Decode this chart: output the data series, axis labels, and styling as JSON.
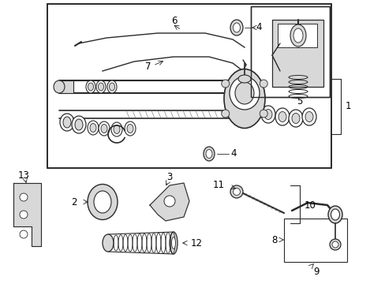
{
  "bg_color": "#ffffff",
  "lc": "#2a2a2a",
  "gray_fill": "#d8d8d8",
  "light_fill": "#eeeeee",
  "fig_w": 4.89,
  "fig_h": 3.6,
  "dpi": 100,
  "label_fs": 8.5
}
